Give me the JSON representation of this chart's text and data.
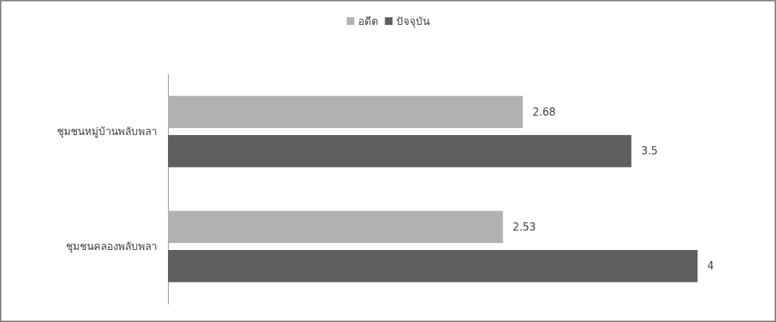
{
  "chart_data": {
    "type": "bar",
    "orientation": "horizontal",
    "categories": [
      "ชุมชนหมู่บ้านพลับพลา",
      "ชุมชนคลองพลับพลา"
    ],
    "series": [
      {
        "name": "อดีต",
        "color": "#b2b2b2",
        "values": [
          2.68,
          2.53
        ]
      },
      {
        "name": "ปัจจุบัน",
        "color": "#5f5f5f",
        "values": [
          3.5,
          4
        ]
      }
    ],
    "data_labels": true,
    "legend": "top"
  }
}
